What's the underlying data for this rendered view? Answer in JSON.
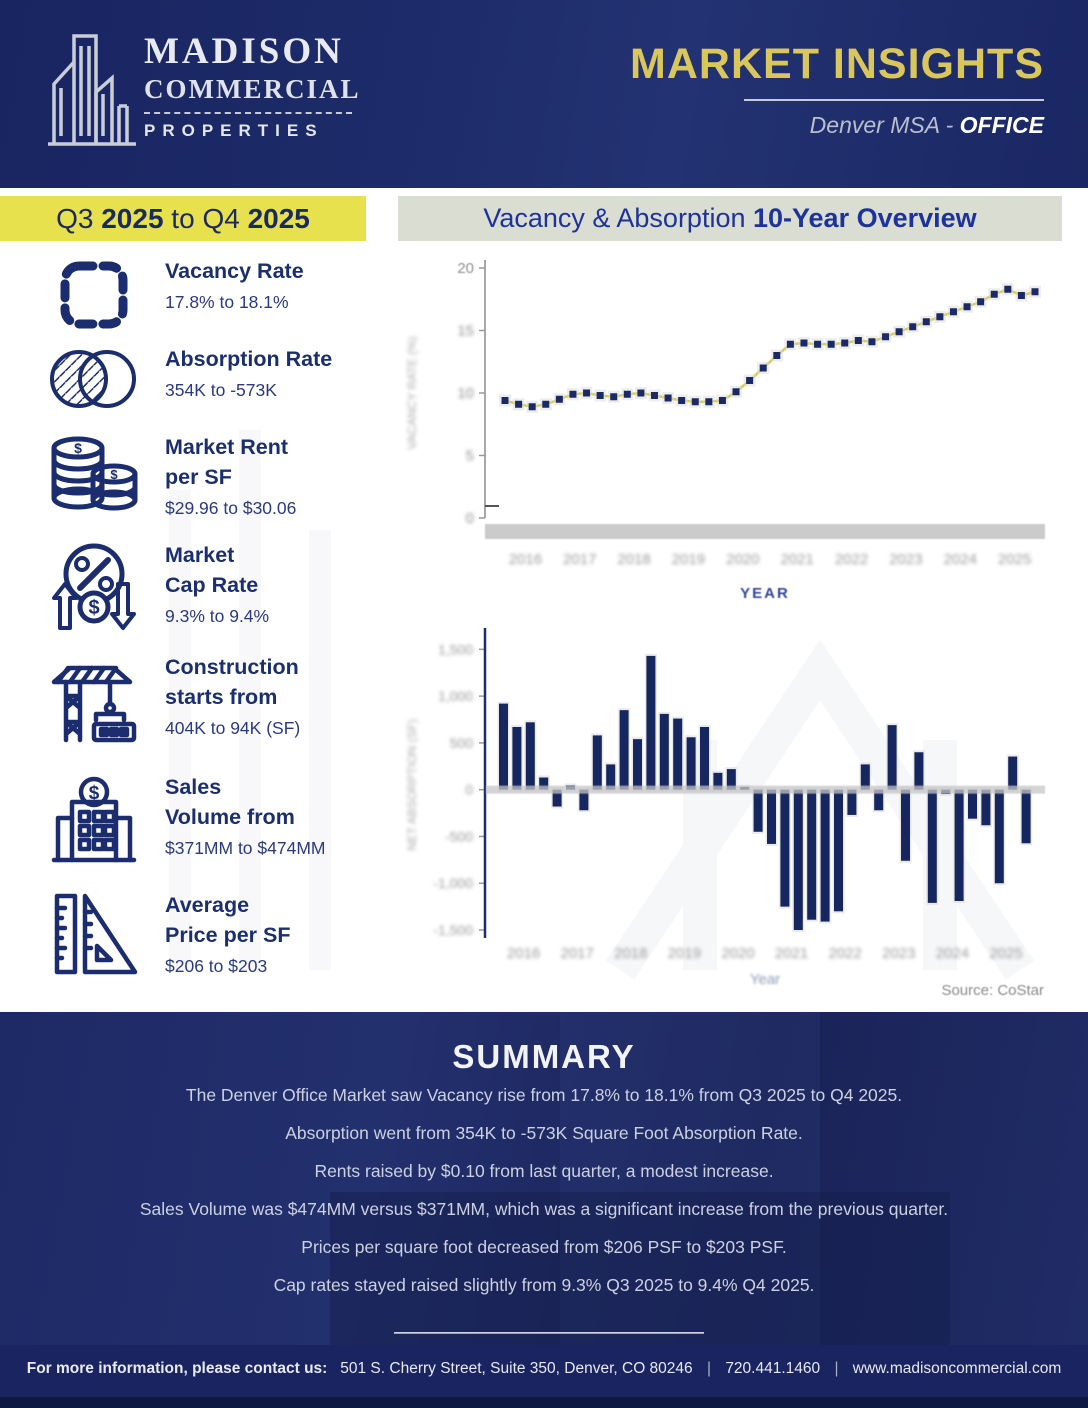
{
  "header": {
    "logo_name": "MADISON",
    "logo_line2": "COMMERCIAL",
    "logo_line3": "PROPERTIES",
    "title": "MARKET INSIGHTS",
    "region": "Denver MSA",
    "dash": " - ",
    "market": "OFFICE",
    "accent_gold": "#d9c65c",
    "navy": "#1c2a67"
  },
  "period": {
    "q_from": "Q3",
    "year_from": "2025",
    "to_word": " to ",
    "q_to": "Q4",
    "year_to": "2025",
    "band_color": "#e7e14d"
  },
  "section_title": {
    "normal": "Vacancy & Absorption ",
    "bold": "10-Year Overview",
    "band_color": "#d9ddd2"
  },
  "stats": [
    {
      "icon": "vacancy-rate-icon",
      "label_lines": [
        "Vacancy Rate"
      ],
      "value": "17.8% to 18.1%"
    },
    {
      "icon": "absorption-rate-icon",
      "label_lines": [
        "Absorption Rate"
      ],
      "value": "354K to -573K"
    },
    {
      "icon": "market-rent-icon",
      "label_lines": [
        "Market Rent",
        "per SF"
      ],
      "value": "$29.96 to $30.06"
    },
    {
      "icon": "cap-rate-icon",
      "label_lines": [
        "Market",
        "Cap Rate"
      ],
      "value": "9.3% to 9.4%"
    },
    {
      "icon": "construction-icon",
      "label_lines": [
        "Construction",
        "starts from"
      ],
      "value": "404K to 94K (SF)"
    },
    {
      "icon": "sales-volume-icon",
      "label_lines": [
        "Sales",
        "Volume from"
      ],
      "value": "$371MM to $474MM"
    },
    {
      "icon": "price-per-sf-icon",
      "label_lines": [
        "Average",
        "Price per SF"
      ],
      "value": "$206 to $203"
    }
  ],
  "chart_data": [
    {
      "type": "line",
      "series_name": "Vacancy Rate",
      "x": [
        "Q1 2016",
        "Q2 2016",
        "Q3 2016",
        "Q4 2016",
        "Q1 2017",
        "Q2 2017",
        "Q3 2017",
        "Q4 2017",
        "Q1 2018",
        "Q2 2018",
        "Q3 2018",
        "Q4 2018",
        "Q1 2019",
        "Q2 2019",
        "Q3 2019",
        "Q4 2019",
        "Q1 2020",
        "Q2 2020",
        "Q3 2020",
        "Q4 2020",
        "Q1 2021",
        "Q2 2021",
        "Q3 2021",
        "Q4 2021",
        "Q1 2022",
        "Q2 2022",
        "Q3 2022",
        "Q4 2022",
        "Q1 2023",
        "Q2 2023",
        "Q3 2023",
        "Q4 2023",
        "Q1 2024",
        "Q2 2024",
        "Q3 2024",
        "Q4 2024",
        "Q1 2025",
        "Q2 2025",
        "Q3 2025",
        "Q4 2025"
      ],
      "values": [
        9.4,
        9.1,
        8.9,
        9.1,
        9.5,
        9.9,
        10.0,
        9.8,
        9.7,
        9.9,
        10.0,
        9.8,
        9.6,
        9.4,
        9.3,
        9.3,
        9.4,
        10.1,
        11.0,
        12.0,
        13.0,
        13.9,
        14.0,
        13.9,
        13.9,
        14.0,
        14.2,
        14.1,
        14.5,
        14.9,
        15.3,
        15.7,
        16.1,
        16.5,
        16.9,
        17.3,
        17.9,
        18.3,
        17.8,
        18.1
      ],
      "xlabel": "YEAR",
      "ylabel": "VACANCY RATE (%)",
      "ylim": [
        0,
        20
      ],
      "yticks": [
        0,
        5,
        10,
        15,
        20
      ],
      "year_labels": [
        "2016",
        "2017",
        "2018",
        "2019",
        "2020",
        "2021",
        "2022",
        "2023",
        "2024",
        "2025"
      ],
      "grid": false,
      "legend": "none",
      "line_color": "#d6ca49",
      "marker_color": "#1b2a66"
    },
    {
      "type": "bar",
      "series_name": "Net Absorption (thousands of SF)",
      "x": [
        "Q1 2016",
        "Q2 2016",
        "Q3 2016",
        "Q4 2016",
        "Q1 2017",
        "Q2 2017",
        "Q3 2017",
        "Q4 2017",
        "Q1 2018",
        "Q2 2018",
        "Q3 2018",
        "Q4 2018",
        "Q1 2019",
        "Q2 2019",
        "Q3 2019",
        "Q4 2019",
        "Q1 2020",
        "Q2 2020",
        "Q3 2020",
        "Q4 2020",
        "Q1 2021",
        "Q2 2021",
        "Q3 2021",
        "Q4 2021",
        "Q1 2022",
        "Q2 2022",
        "Q3 2022",
        "Q4 2022",
        "Q1 2023",
        "Q2 2023",
        "Q3 2023",
        "Q4 2023",
        "Q1 2024",
        "Q2 2024",
        "Q3 2024",
        "Q4 2024",
        "Q1 2025",
        "Q2 2025",
        "Q3 2025",
        "Q4 2025"
      ],
      "values": [
        920,
        670,
        720,
        130,
        -180,
        45,
        -220,
        580,
        270,
        850,
        540,
        1430,
        810,
        760,
        560,
        670,
        180,
        220,
        30,
        -450,
        -580,
        -1250,
        -1500,
        -1390,
        -1410,
        -1300,
        -270,
        270,
        -220,
        690,
        -760,
        400,
        -1210,
        -45,
        -1190,
        -310,
        -380,
        -1000,
        354,
        -573
      ],
      "unit": "K SF",
      "xlabel": "Year",
      "ylabel": "NET ABSORPTION (SF)",
      "ylim": [
        -1500,
        1600
      ],
      "yticks": [
        1500,
        1000,
        500,
        0,
        -500,
        -1000,
        -1500
      ],
      "year_labels": [
        "2016",
        "2017",
        "2018",
        "2019",
        "2020",
        "2021",
        "2022",
        "2023",
        "2024",
        "2025"
      ],
      "grid": false,
      "legend": "none",
      "bar_color": "#16265e"
    }
  ],
  "source_note": "Source: CoStar",
  "summary": {
    "heading": "SUMMARY",
    "paragraphs": [
      "The Denver Office Market saw Vacancy rise from 17.8% to 18.1% from Q3 2025 to Q4 2025.",
      "Absorption went from 354K to -573K Square Foot Absorption Rate.",
      "Rents raised by $0.10 from last quarter, a modest increase.",
      "Sales Volume was $474MM versus $371MM, which was a significant increase from the previous quarter.",
      "Prices per square foot decreased from $206 PSF to $203 PSF.",
      "Cap rates stayed raised slightly from 9.3% Q3 2025 to 9.4% Q4 2025."
    ]
  },
  "footer": {
    "lead": "For more information, please contact us:",
    "address": "501 S. Cherry Street, Suite 350, Denver, CO 80246",
    "separator": "|",
    "phone": "720.441.1460",
    "website": "www.madisoncommercial.com"
  }
}
